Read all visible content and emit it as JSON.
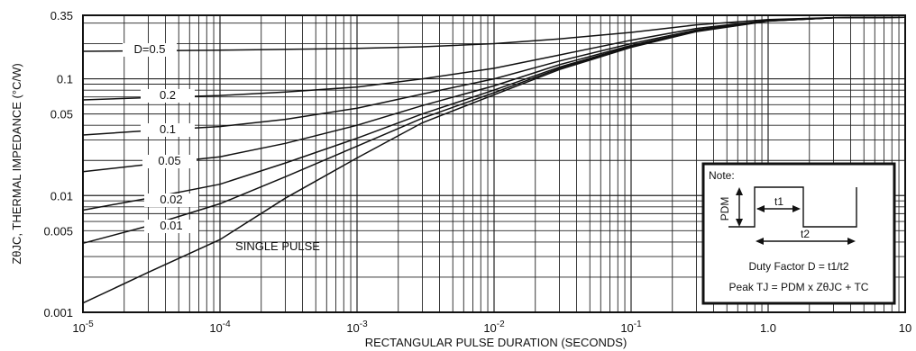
{
  "chart_data": {
    "type": "line",
    "xscale": "log",
    "yscale": "log",
    "xlim": [
      1e-05,
      10
    ],
    "ylim": [
      0.001,
      0.35
    ],
    "xlabel": "RECTANGULAR PULSE DURATION (SECONDS)",
    "ylabel": "ZθJC, THERMAL IMPEDANCE (°C/W)",
    "x_ticks": [
      {
        "value": 1e-05,
        "base": "10",
        "exp": "-5"
      },
      {
        "value": 0.0001,
        "base": "10",
        "exp": "-4"
      },
      {
        "value": 0.001,
        "base": "10",
        "exp": "-3"
      },
      {
        "value": 0.01,
        "base": "10",
        "exp": "-2"
      },
      {
        "value": 0.1,
        "base": "10",
        "exp": "-1"
      },
      {
        "value": 1,
        "base": "1.0",
        "exp": ""
      },
      {
        "value": 10,
        "base": "10",
        "exp": ""
      }
    ],
    "y_ticks": [
      {
        "value": 0.35,
        "label": "0.35"
      },
      {
        "value": 0.1,
        "label": "0.1"
      },
      {
        "value": 0.05,
        "label": "0.05"
      },
      {
        "value": 0.01,
        "label": "0.01"
      },
      {
        "value": 0.005,
        "label": "0.005"
      },
      {
        "value": 0.001,
        "label": "0.001"
      }
    ],
    "series": [
      {
        "name": "D=0.5",
        "label": "D=0.5",
        "x": [
          1e-05,
          0.0001,
          0.001,
          0.003,
          0.01,
          0.03,
          0.1,
          0.3,
          1,
          3,
          10
        ],
        "y": [
          0.172,
          0.176,
          0.182,
          0.188,
          0.2,
          0.22,
          0.25,
          0.29,
          0.322,
          0.334,
          0.336
        ]
      },
      {
        "name": "0.2",
        "label": "0.2",
        "x": [
          1e-05,
          3e-05,
          0.0001,
          0.0003,
          0.001,
          0.003,
          0.01,
          0.03,
          0.1,
          0.3,
          1,
          3,
          10
        ],
        "y": [
          0.066,
          0.069,
          0.072,
          0.077,
          0.085,
          0.1,
          0.123,
          0.16,
          0.214,
          0.27,
          0.317,
          0.333,
          0.336
        ]
      },
      {
        "name": "0.1",
        "label": "0.1",
        "x": [
          1e-05,
          3e-05,
          0.0001,
          0.0003,
          0.001,
          0.003,
          0.01,
          0.03,
          0.1,
          0.3,
          1,
          3,
          10
        ],
        "y": [
          0.033,
          0.036,
          0.039,
          0.045,
          0.056,
          0.074,
          0.1,
          0.142,
          0.2,
          0.262,
          0.315,
          0.333,
          0.336
        ]
      },
      {
        "name": "0.05",
        "label": "0.05",
        "x": [
          1e-05,
          3e-05,
          0.0001,
          0.0003,
          0.001,
          0.003,
          0.01,
          0.03,
          0.1,
          0.3,
          1,
          3,
          10
        ],
        "y": [
          0.016,
          0.0185,
          0.0215,
          0.028,
          0.04,
          0.059,
          0.087,
          0.132,
          0.193,
          0.258,
          0.314,
          0.333,
          0.336
        ]
      },
      {
        "name": "0.02",
        "label": "0.02",
        "x": [
          1e-05,
          3e-05,
          0.0001,
          0.0003,
          0.001,
          0.003,
          0.01,
          0.03,
          0.1,
          0.3,
          1,
          3,
          10
        ],
        "y": [
          0.0075,
          0.0095,
          0.0125,
          0.019,
          0.031,
          0.05,
          0.08,
          0.126,
          0.19,
          0.256,
          0.313,
          0.333,
          0.336
        ]
      },
      {
        "name": "0.01",
        "label": "0.01",
        "x": [
          1e-05,
          3e-05,
          0.0001,
          0.0003,
          0.001,
          0.003,
          0.01,
          0.03,
          0.1,
          0.3,
          1,
          3,
          10
        ],
        "y": [
          0.0039,
          0.0055,
          0.0085,
          0.0145,
          0.0265,
          0.046,
          0.076,
          0.123,
          0.188,
          0.255,
          0.313,
          0.333,
          0.336
        ]
      },
      {
        "name": "SINGLE PULSE",
        "label": "SINGLE PULSE",
        "x": [
          1e-05,
          3e-05,
          0.0001,
          0.0003,
          0.001,
          0.003,
          0.01,
          0.03,
          0.1,
          0.3,
          1,
          3,
          10
        ],
        "y": [
          0.0012,
          0.0022,
          0.0042,
          0.0095,
          0.021,
          0.042,
          0.073,
          0.12,
          0.186,
          0.254,
          0.312,
          0.333,
          0.336
        ]
      }
    ],
    "note": {
      "title": "Note:",
      "pdm": "PDM",
      "t1": "t1",
      "t2": "t2",
      "duty_factor": "Duty Factor  D = t1/t2",
      "peak": "Peak TJ = PDM x ZθJC + TC"
    },
    "grid": true
  }
}
